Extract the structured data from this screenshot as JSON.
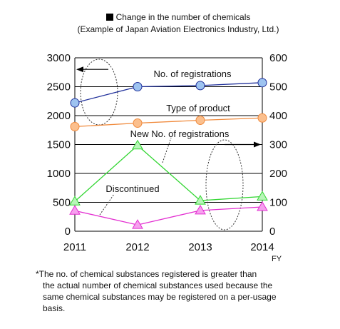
{
  "title": {
    "line1": "Change in the number of chemicals",
    "line2": "(Example of Japan Aviation Electronics Industry, Ltd.)"
  },
  "chart_data": {
    "type": "line",
    "categories": [
      "2011",
      "2012",
      "2013",
      "2014"
    ],
    "xlabel": "FY",
    "y_left": {
      "ylim": [
        0,
        3000
      ],
      "ticks": [
        0,
        500,
        1000,
        1500,
        2000,
        2500,
        3000
      ],
      "tick_labels": [
        "0",
        "500",
        "1000",
        "1500",
        "2000",
        "2500",
        "3000"
      ]
    },
    "y_right": {
      "ylim": [
        0,
        600
      ],
      "ticks": [
        0,
        100,
        200,
        300,
        400,
        500,
        600
      ],
      "tick_labels": [
        "0",
        "100",
        "200",
        "300",
        "400",
        "500",
        "600"
      ]
    },
    "grid": true,
    "series": [
      {
        "name": "No. of registrations",
        "axis": "left",
        "marker": "circle",
        "color": "#1f2f9a",
        "fill": "#9dc3f0",
        "values": [
          2220,
          2500,
          2520,
          2570
        ]
      },
      {
        "name": "Type of product",
        "axis": "right",
        "marker": "circle",
        "color": "#f08a3c",
        "fill": "#fbbf8d",
        "values": [
          362,
          374,
          384,
          392
        ]
      },
      {
        "name": "New No. of registrations",
        "axis": "right",
        "marker": "triangle",
        "color": "#33d633",
        "fill": "#b8f5b8",
        "values": [
          103,
          297,
          106,
          120
        ]
      },
      {
        "name": "Discontinued",
        "axis": "right",
        "marker": "triangle",
        "color": "#e32fd1",
        "fill": "#f6a0ee",
        "values": [
          71,
          22,
          72,
          84
        ]
      }
    ],
    "annotations": [
      {
        "type": "arrow",
        "direction": "left",
        "axis": "left",
        "value": 2800
      },
      {
        "type": "arrow",
        "direction": "right",
        "axis": "left",
        "value": 1500
      }
    ]
  },
  "footnote": {
    "line1": "*The no. of chemical substances registered is greater than",
    "line2": "the actual number of chemical substances used because the",
    "line3": "same chemical substances may be registered on a per-usage",
    "line4": "basis."
  }
}
